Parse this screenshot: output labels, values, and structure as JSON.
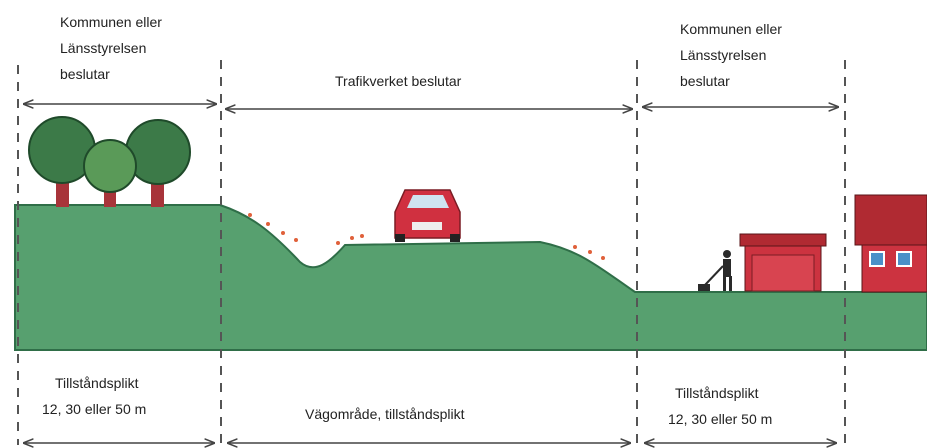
{
  "top": {
    "left": {
      "lines": [
        "Kommunen eller",
        "Länsstyrelsen",
        "beslutar"
      ]
    },
    "middle": {
      "lines": [
        "Trafikverket beslutar"
      ]
    },
    "right": {
      "lines": [
        "Kommunen eller",
        "Länsstyrelsen",
        "beslutar"
      ]
    }
  },
  "bottom": {
    "left": {
      "lines": [
        "Tillståndsplikt",
        "12, 30 eller 50 m"
      ]
    },
    "middle": {
      "lines": [
        "Vägområde, tillståndsplikt"
      ]
    },
    "right": {
      "lines": [
        "Tillståndsplikt",
        "12, 30 eller 50 m"
      ]
    }
  }
}
